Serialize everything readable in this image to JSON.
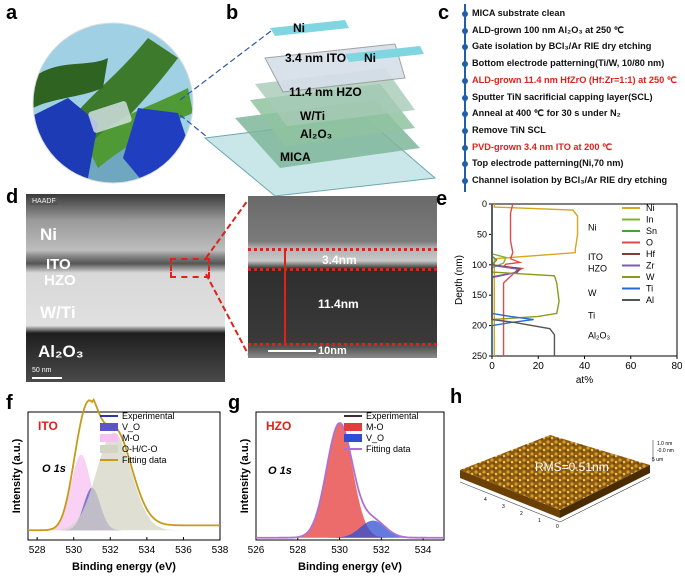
{
  "panels": {
    "a": "a",
    "b": "b",
    "c": "c",
    "d": "d",
    "e": "e",
    "f": "f",
    "g": "g",
    "h": "h"
  },
  "device_layers": [
    "Ni",
    "3.4 nm ITO",
    "Ni",
    "11.4 nm HZO",
    "W/Ti",
    "Al₂O₃",
    "MICA"
  ],
  "process_steps": [
    {
      "text": "MICA substrate clean",
      "red": false
    },
    {
      "text": "ALD-grown 100 nm Al₂O₃ at 250 ℃",
      "red": false
    },
    {
      "text": "Gate isolation by BCl₃/Ar RIE dry etching",
      "red": false
    },
    {
      "text": "Bottom electrode patterning(Ti/W, 10/80 nm)",
      "red": false
    },
    {
      "text": "ALD-grown 11.4 nm HfZrO (Hf:Zr=1:1) at 250 ℃",
      "red": true
    },
    {
      "text": "Sputter TiN sacrificial capping layer(SCL)",
      "red": false
    },
    {
      "text": "Anneal at 400 ℃ for 30 s under N₂",
      "red": false
    },
    {
      "text": "Remove TiN SCL",
      "red": false
    },
    {
      "text": "PVD-grown 3.4 nm ITO at 200 ℃",
      "red": true
    },
    {
      "text": "Top electrode patterning(Ni,70 nm)",
      "red": false
    },
    {
      "text": "Channel isolation by BCl₃/Ar RIE dry etching",
      "red": false
    }
  ],
  "tem": {
    "haadf_tag": "HAADF",
    "layers": [
      "Ni",
      "ITO",
      "HZO",
      "W/Ti",
      "Al₂O₃"
    ],
    "scale_bar": "50 nm",
    "zoom_ito": "3.4nm",
    "zoom_hzo": "11.4nm",
    "zoom_scale": "10nm"
  },
  "chart_data": [
    {
      "type": "line",
      "panel": "e",
      "xlabel": "at%",
      "ylabel": "Depth (nm)",
      "xlim": [
        0,
        80
      ],
      "ylim": [
        0,
        250
      ],
      "xticks": [
        0,
        20,
        40,
        60,
        80
      ],
      "yticks": [
        0,
        50,
        100,
        150,
        200,
        250
      ],
      "region_labels": [
        "Ni",
        "ITO",
        "HZO",
        "W",
        "Ti",
        "Al₂O₃"
      ],
      "series": [
        {
          "name": "Ni",
          "color": "#d8a51e",
          "x": [
            1,
            1,
            35,
            37,
            37,
            36,
            36,
            1,
            1
          ],
          "y": [
            0,
            5,
            10,
            20,
            50,
            75,
            80,
            90,
            250
          ]
        },
        {
          "name": "In",
          "color": "#7fb239",
          "x": [
            0,
            0,
            6,
            5,
            0,
            0
          ],
          "y": [
            0,
            82,
            88,
            97,
            105,
            250
          ]
        },
        {
          "name": "Sn",
          "color": "#4a9e3c",
          "x": [
            0,
            0,
            2,
            0,
            0
          ],
          "y": [
            0,
            86,
            92,
            100,
            250
          ]
        },
        {
          "name": "O",
          "color": "#e04a4a",
          "x": [
            9,
            8,
            8,
            9,
            8,
            12,
            6,
            5,
            13,
            10,
            5,
            5
          ],
          "y": [
            0,
            15,
            60,
            80,
            90,
            96,
            99,
            103,
            106,
            112,
            130,
            250
          ]
        },
        {
          "name": "Hf",
          "color": "#8b3a3a",
          "x": [
            0,
            0,
            12,
            11,
            0,
            0
          ],
          "y": [
            0,
            100,
            106,
            112,
            120,
            250
          ]
        },
        {
          "name": "Zr",
          "color": "#7a5fb0",
          "x": [
            0,
            0,
            11,
            10,
            0,
            0
          ],
          "y": [
            0,
            101,
            107,
            113,
            121,
            250
          ]
        },
        {
          "name": "W",
          "color": "#8a9a1a",
          "x": [
            0,
            0,
            27,
            28,
            29,
            28,
            20,
            0,
            0
          ],
          "y": [
            0,
            112,
            118,
            130,
            160,
            180,
            185,
            190,
            250
          ]
        },
        {
          "name": "Ti",
          "color": "#2a6ad6",
          "x": [
            0,
            0,
            8,
            18,
            8,
            0,
            0
          ],
          "y": [
            0,
            180,
            185,
            190,
            195,
            200,
            250
          ]
        },
        {
          "name": "Al",
          "color": "#555555",
          "x": [
            0,
            0,
            10,
            25,
            27,
            27
          ],
          "y": [
            0,
            190,
            195,
            205,
            215,
            250
          ]
        }
      ]
    },
    {
      "type": "area",
      "panel": "f",
      "title": "ITO",
      "peak_label": "O 1s",
      "xlabel": "Binding energy (eV)",
      "ylabel": "Intensity (a.u.)",
      "xlim": [
        527.5,
        538
      ],
      "xticks": [
        528,
        530,
        532,
        534,
        536,
        538
      ],
      "legend": [
        "Experimental",
        "V_O",
        "M-O",
        "O-H/C-O",
        "Fitting data"
      ],
      "components": [
        {
          "name": "M-O",
          "color": "#f5c1f0",
          "center": 530.4,
          "height": 0.62,
          "width": 0.55
        },
        {
          "name": "V_O",
          "color": "#5b55c8",
          "center": 531.0,
          "height": 0.35,
          "width": 0.45
        },
        {
          "name": "O-H/C-O",
          "color": "#d4d4c4",
          "center": 532.2,
          "height": 0.8,
          "width": 0.95
        }
      ]
    },
    {
      "type": "area",
      "panel": "g",
      "title": "HZO",
      "peak_label": "O 1s",
      "xlabel": "Binding energy (eV)",
      "ylabel": "Intensity (a.u.)",
      "xlim": [
        526,
        535
      ],
      "xticks": [
        526,
        528,
        530,
        532,
        534
      ],
      "legend": [
        "Experimental",
        "M-O",
        "V_O",
        "Fitting data"
      ],
      "components": [
        {
          "name": "M-O",
          "color": "#e63b3b",
          "center": 530.0,
          "height": 1.0,
          "width": 0.62
        },
        {
          "name": "V_O",
          "color": "#2f4fd0",
          "center": 531.6,
          "height": 0.15,
          "width": 0.6
        }
      ]
    }
  ],
  "afm": {
    "rms": "RMS=0.51nm",
    "ticks": [
      "1.0 nm",
      "-0.0 nm",
      "5 um",
      "4",
      "3",
      "2",
      "1",
      "0"
    ]
  },
  "colors": {
    "red_highlight": "#e0201b",
    "timeline": "#1f5fa8"
  }
}
